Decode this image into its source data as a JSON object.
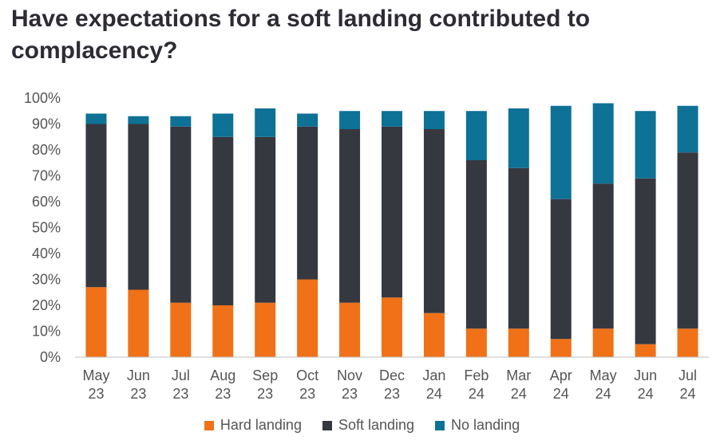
{
  "title": "Have expectations for a soft landing contributed to complacency?",
  "colors": {
    "hard": "#f07118",
    "soft": "#363840",
    "none": "#0e7196"
  },
  "chart_data": {
    "type": "bar",
    "stacked": true,
    "categories": [
      [
        "May",
        "23"
      ],
      [
        "Jun",
        "23"
      ],
      [
        "Jul",
        "23"
      ],
      [
        "Aug",
        "23"
      ],
      [
        "Sep",
        "23"
      ],
      [
        "Oct",
        "23"
      ],
      [
        "Nov",
        "23"
      ],
      [
        "Dec",
        "23"
      ],
      [
        "Jan",
        "24"
      ],
      [
        "Feb",
        "24"
      ],
      [
        "Mar",
        "24"
      ],
      [
        "Apr",
        "24"
      ],
      [
        "May",
        "24"
      ],
      [
        "Jun",
        "24"
      ],
      [
        "Jul",
        "24"
      ]
    ],
    "series": [
      {
        "name": "Hard landing",
        "key": "hard",
        "values": [
          27,
          26,
          21,
          20,
          21,
          30,
          21,
          23,
          17,
          11,
          11,
          7,
          11,
          5,
          11
        ]
      },
      {
        "name": "Soft landing",
        "key": "soft",
        "values": [
          63,
          64,
          68,
          65,
          64,
          59,
          67,
          66,
          71,
          65,
          62,
          54,
          56,
          64,
          68
        ]
      },
      {
        "name": "No landing",
        "key": "none",
        "values": [
          4,
          3,
          4,
          9,
          11,
          5,
          7,
          6,
          7,
          19,
          23,
          36,
          31,
          26,
          18
        ]
      }
    ],
    "ylim": [
      0,
      100
    ],
    "yticks": [
      "0%",
      "10%",
      "20%",
      "30%",
      "40%",
      "50%",
      "60%",
      "70%",
      "80%",
      "90%",
      "100%"
    ],
    "grid": false,
    "legend_position": "bottom"
  }
}
